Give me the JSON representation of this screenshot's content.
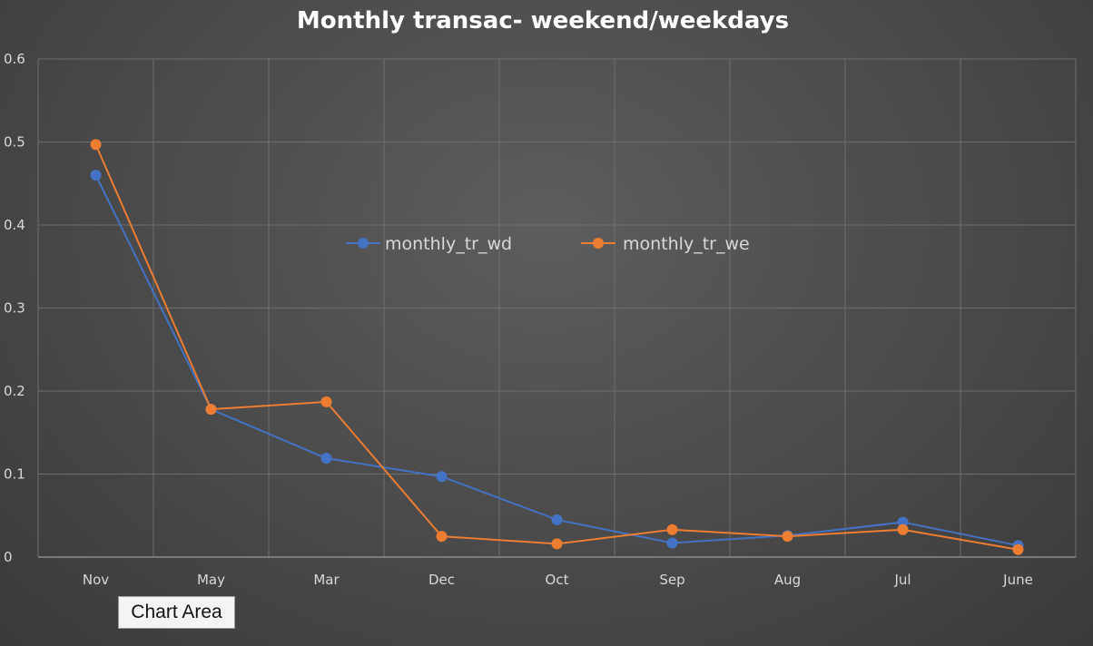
{
  "chart_data": {
    "type": "line",
    "title": "Monthly transac- weekend/weekdays",
    "xlabel": "",
    "ylabel": "",
    "categories": [
      "Nov",
      "May",
      "Mar",
      "Dec",
      "Oct",
      "Sep",
      "Aug",
      "Jul",
      "June"
    ],
    "ylim": [
      0,
      0.6
    ],
    "yticks": [
      0,
      0.1,
      0.2,
      0.3,
      0.4,
      0.5,
      0.6
    ],
    "ytick_labels": [
      "0",
      "0.1",
      "0.2",
      "0.3",
      "0.4",
      "0.5",
      "0.6"
    ],
    "grid": true,
    "legend_position": "top-center (inside plot)",
    "series": [
      {
        "name": "monthly_tr_wd",
        "color": "#4472c4",
        "values": [
          0.46,
          0.178,
          0.119,
          0.097,
          0.045,
          0.017,
          0.026,
          0.042,
          0.014
        ]
      },
      {
        "name": "monthly_tr_we",
        "color": "#ed7d31",
        "values": [
          0.497,
          0.178,
          0.187,
          0.025,
          0.016,
          0.033,
          0.025,
          0.033,
          0.009
        ]
      }
    ]
  },
  "tooltip": {
    "text": "Chart Area"
  }
}
